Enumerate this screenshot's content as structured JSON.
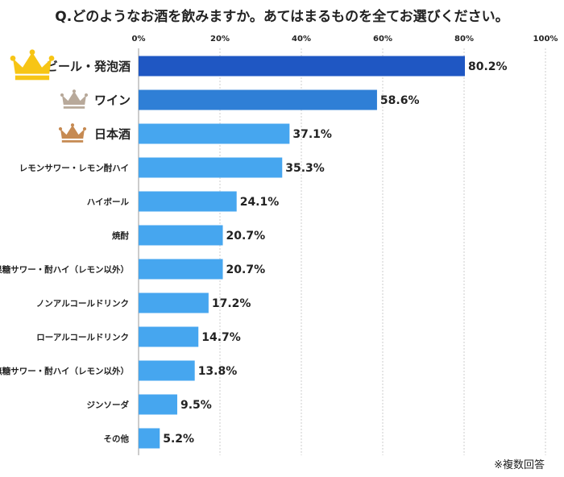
{
  "chart_data": {
    "type": "bar",
    "orientation": "horizontal",
    "title": "Q.どのようなお酒を飲みますか。あてはまるものを全てお選びください。",
    "footnote": "※複数回答",
    "x_ticks": [
      "0%",
      "20%",
      "40%",
      "60%",
      "80%",
      "100%"
    ],
    "xlim": [
      0,
      100
    ],
    "grid": true,
    "categories": [
      "ビール・発泡酒",
      "ワイン",
      "日本酒",
      "レモンサワー・レモン酎ハイ",
      "ハイボール",
      "焼酎",
      "果糖サワー・酎ハイ（レモン以外）",
      "ノンアルコールドリンク",
      "ローアルコールドリンク",
      "無糖サワー・酎ハイ（レモン以外）",
      "ジンソーダ",
      "その他"
    ],
    "values": [
      80.2,
      58.6,
      37.1,
      35.3,
      24.1,
      20.7,
      20.7,
      17.2,
      14.7,
      13.8,
      9.5,
      5.2
    ],
    "value_labels": [
      "80.2%",
      "58.6%",
      "37.1%",
      "35.3%",
      "24.1%",
      "20.7%",
      "20.7%",
      "17.2%",
      "14.7%",
      "13.8%",
      "9.5%",
      "5.2%"
    ],
    "crown_icons": [
      "gold-crown-icon",
      "silver-crown-icon",
      "bronze-crown-icon"
    ],
    "colors": {
      "rank1": "#1f57c3",
      "rank2": "#2f7fd6",
      "default": "#46a6ef",
      "gold": "#f7c515",
      "silver": "#b8a99a",
      "bronze": "#c68a52",
      "grid": "#cccccc",
      "axis": "#999999",
      "text": "#222222"
    }
  }
}
